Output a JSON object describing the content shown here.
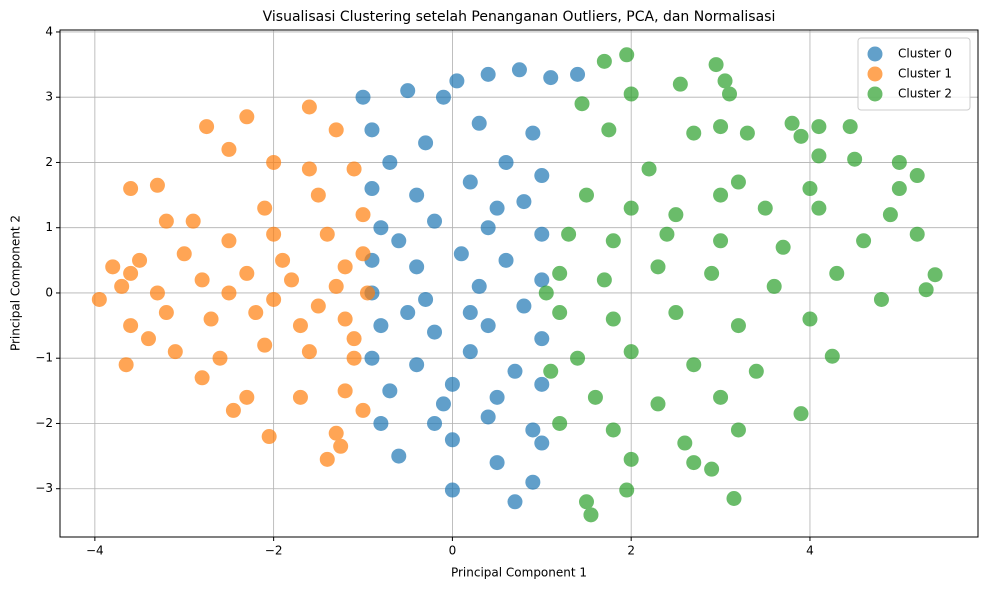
{
  "chart_data": {
    "type": "scatter",
    "title": "Visualisasi Clustering setelah Penanganan Outliers, PCA, dan Normalisasi",
    "x_label": "Principal Component 1",
    "y_label": "Principal Component 2",
    "xlim": [
      -4.39,
      5.88
    ],
    "ylim": [
      -3.74,
      4.03
    ],
    "xticks": [
      {
        "value": -4,
        "label": "−4"
      },
      {
        "value": -2,
        "label": "−2"
      },
      0,
      2,
      4
    ],
    "yticks": [
      {
        "value": -3,
        "label": "−3"
      },
      {
        "value": -2,
        "label": "−2"
      },
      {
        "value": -1,
        "label": "−1"
      },
      0,
      1,
      2,
      3,
      4
    ],
    "grid": true,
    "legend": "upper right",
    "series": [
      {
        "name": "Cluster 0",
        "color": "#1f77b4",
        "x": [
          -0.1,
          0.05,
          0.75,
          1.1,
          1.4,
          -1.0,
          -0.5,
          0.4,
          0.9,
          -0.9,
          -0.3,
          0.3,
          -0.7,
          0.6,
          1.0,
          -0.9,
          -0.4,
          0.2,
          0.8,
          -0.8,
          -0.2,
          0.4,
          1.0,
          -0.9,
          -0.4,
          0.1,
          0.6,
          1.0,
          -0.9,
          -0.3,
          0.3,
          0.8,
          -0.8,
          -0.2,
          0.4,
          1.0,
          -0.9,
          -0.4,
          0.2,
          0.7,
          -0.7,
          0.0,
          0.5,
          1.0,
          -0.8,
          -0.2,
          0.4,
          0.9,
          -0.6,
          0.0,
          0.5,
          1.0,
          0.0,
          0.7,
          0.9,
          -0.5,
          0.2,
          -0.6,
          0.5,
          -0.1
        ],
        "y": [
          3.0,
          3.25,
          3.42,
          3.3,
          3.35,
          3.0,
          3.1,
          3.35,
          2.45,
          2.5,
          2.3,
          2.6,
          2.0,
          2.0,
          1.8,
          1.6,
          1.5,
          1.7,
          1.4,
          1.0,
          1.1,
          1.0,
          0.9,
          0.5,
          0.4,
          0.6,
          0.5,
          0.2,
          0.0,
          -0.1,
          0.1,
          -0.2,
          -0.5,
          -0.6,
          -0.5,
          -0.7,
          -1.0,
          -1.1,
          -0.9,
          -1.2,
          -1.5,
          -1.4,
          -1.6,
          -1.4,
          -2.0,
          -2.0,
          -1.9,
          -2.1,
          -2.5,
          -2.25,
          -2.6,
          -2.3,
          -3.02,
          -3.2,
          -2.9,
          -0.3,
          -0.3,
          0.8,
          1.3,
          -1.7
        ]
      },
      {
        "name": "Cluster 1",
        "color": "#ff7f0e",
        "x": [
          -2.3,
          -1.6,
          -2.75,
          -1.3,
          -2.0,
          -1.6,
          -3.6,
          -3.3,
          -2.5,
          -1.1,
          -2.9,
          -3.2,
          -2.1,
          -1.5,
          -1.0,
          -3.8,
          -3.5,
          -3.0,
          -2.5,
          -2.0,
          -1.4,
          -1.0,
          -3.95,
          -3.7,
          -3.3,
          -2.8,
          -2.3,
          -1.8,
          -1.3,
          -0.95,
          -3.6,
          -3.2,
          -2.7,
          -2.2,
          -1.7,
          -1.2,
          -3.65,
          -3.1,
          -2.6,
          -2.1,
          -1.6,
          -1.1,
          -2.8,
          -2.3,
          -1.7,
          -1.2,
          -2.05,
          -1.3,
          -1.25,
          -1.4,
          -2.45,
          -3.4,
          -1.5,
          -2.0,
          -1.1,
          -2.5,
          -1.2,
          -1.9,
          -3.6,
          -1.0
        ],
        "y": [
          2.7,
          2.85,
          2.55,
          2.5,
          2.0,
          1.9,
          1.6,
          1.65,
          2.2,
          1.9,
          1.1,
          1.1,
          1.3,
          1.5,
          1.2,
          0.4,
          0.5,
          0.6,
          0.8,
          0.9,
          0.9,
          0.6,
          -0.1,
          0.1,
          0.0,
          0.2,
          0.3,
          0.2,
          0.1,
          0.0,
          -0.5,
          -0.3,
          -0.4,
          -0.3,
          -0.5,
          -0.4,
          -1.1,
          -0.9,
          -1.0,
          -0.8,
          -0.9,
          -1.0,
          -1.3,
          -1.6,
          -1.6,
          -1.5,
          -2.2,
          -2.15,
          -2.35,
          -2.55,
          -1.8,
          -0.7,
          -0.2,
          -0.1,
          -0.7,
          0.0,
          0.4,
          0.5,
          0.3,
          -1.8
        ]
      },
      {
        "name": "Cluster 2",
        "color": "#2ca02c",
        "x": [
          1.95,
          1.7,
          2.95,
          3.05,
          3.1,
          2.55,
          2.0,
          1.45,
          1.75,
          3.0,
          3.3,
          3.8,
          4.1,
          4.45,
          2.7,
          3.9,
          4.1,
          4.5,
          5.0,
          5.2,
          2.2,
          3.2,
          4.0,
          5.0,
          1.5,
          2.0,
          2.5,
          3.0,
          3.5,
          4.1,
          4.9,
          1.3,
          1.8,
          2.4,
          3.0,
          3.7,
          4.6,
          5.2,
          1.2,
          1.7,
          2.3,
          2.9,
          3.6,
          4.3,
          5.4,
          5.3,
          1.2,
          1.8,
          2.5,
          3.2,
          4.0,
          4.8,
          1.4,
          2.0,
          2.7,
          3.4,
          4.25,
          1.6,
          2.3,
          3.0,
          3.9,
          1.2,
          1.8,
          2.6,
          3.2,
          2.0,
          2.7,
          2.9,
          1.95,
          1.5,
          1.55,
          3.15,
          1.05,
          1.1
        ],
        "y": [
          3.65,
          3.55,
          3.5,
          3.25,
          3.05,
          3.2,
          3.05,
          2.9,
          2.5,
          2.55,
          2.45,
          2.6,
          2.55,
          2.55,
          2.45,
          2.4,
          2.1,
          2.05,
          2.0,
          1.8,
          1.9,
          1.7,
          1.6,
          1.6,
          1.5,
          1.3,
          1.2,
          1.5,
          1.3,
          1.3,
          1.2,
          0.9,
          0.8,
          0.9,
          0.8,
          0.7,
          0.8,
          0.9,
          0.3,
          0.2,
          0.4,
          0.3,
          0.1,
          0.3,
          0.28,
          0.05,
          -0.3,
          -0.4,
          -0.3,
          -0.5,
          -0.4,
          -0.1,
          -1.0,
          -0.9,
          -1.1,
          -1.2,
          -0.97,
          -1.6,
          -1.7,
          -1.6,
          -1.85,
          -2.0,
          -2.1,
          -2.3,
          -2.1,
          -2.55,
          -2.6,
          -2.7,
          -3.02,
          -3.2,
          -3.4,
          -3.15,
          0.0,
          -1.2
        ]
      }
    ]
  }
}
